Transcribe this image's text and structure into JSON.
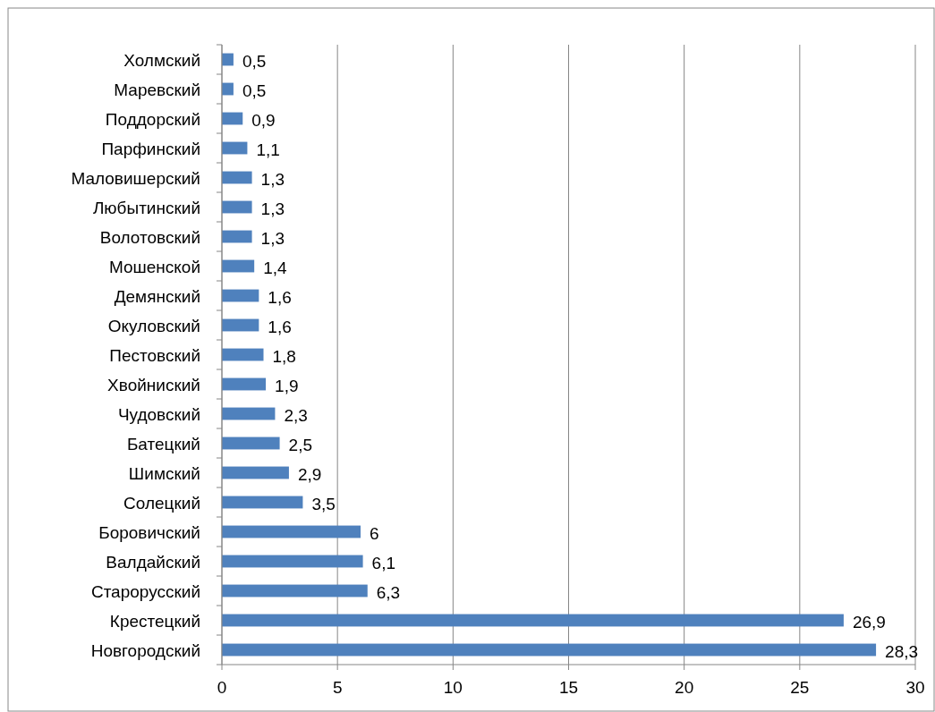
{
  "chart_data": {
    "type": "bar",
    "orientation": "horizontal",
    "categories": [
      "Холмский",
      "Маревский",
      "Поддорский",
      "Парфинский",
      "Маловишерский",
      "Любытинский",
      "Волотовский",
      "Мошенской",
      "Демянский",
      "Окуловский",
      "Пестовский",
      "Хвойниский",
      "Чудовский",
      "Батецкий",
      "Шимский",
      "Солецкий",
      "Боровичский",
      "Валдайский",
      "Старорусский",
      "Крестецкий",
      "Новгородский"
    ],
    "values": [
      0.5,
      0.5,
      0.9,
      1.1,
      1.3,
      1.3,
      1.3,
      1.4,
      1.6,
      1.6,
      1.8,
      1.9,
      2.3,
      2.5,
      2.9,
      3.5,
      6,
      6.1,
      6.3,
      26.9,
      28.3
    ],
    "value_labels": [
      "0,5",
      "0,5",
      "0,9",
      "1,1",
      "1,3",
      "1,3",
      "1,3",
      "1,4",
      "1,6",
      "1,6",
      "1,8",
      "1,9",
      "2,3",
      "2,5",
      "2,9",
      "3,5",
      "6",
      "6,1",
      "6,3",
      "26,9",
      "28,3"
    ],
    "color": "#4f81bd",
    "xlim": [
      0,
      30
    ],
    "xticks": [
      0,
      5,
      10,
      15,
      20,
      25,
      30
    ],
    "grid": "x"
  }
}
